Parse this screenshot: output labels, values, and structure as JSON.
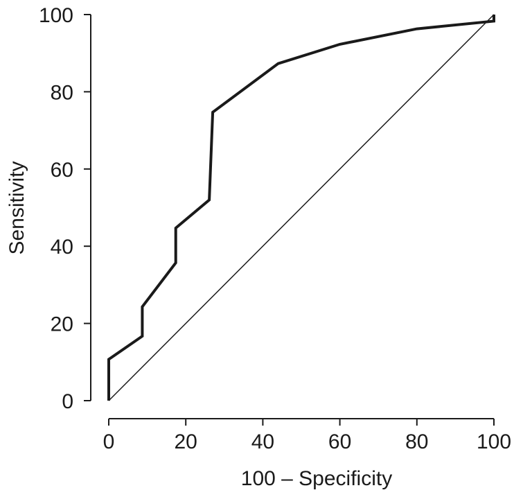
{
  "chart_data": {
    "type": "line",
    "xlabel": "100 – Specificity",
    "ylabel": "Sensitivity",
    "xlim": [
      0,
      100
    ],
    "ylim": [
      0,
      100
    ],
    "x_ticks": [
      0,
      20,
      40,
      60,
      80,
      100
    ],
    "y_ticks": [
      0,
      20,
      40,
      60,
      80,
      100
    ],
    "grid": false,
    "series": [
      {
        "x": [
          0,
          0,
          8.7,
          8.7,
          17.4,
          17.4,
          26.1,
          27.0,
          44.0,
          60.0,
          80.0,
          100.0,
          100.0
        ],
        "y": [
          0,
          10.7,
          16.7,
          24.3,
          35.7,
          44.7,
          52.0,
          74.7,
          87.3,
          92.3,
          96.3,
          98.3,
          100.0
        ]
      },
      {
        "x": [
          0,
          100
        ],
        "y": [
          0,
          100
        ]
      }
    ]
  }
}
